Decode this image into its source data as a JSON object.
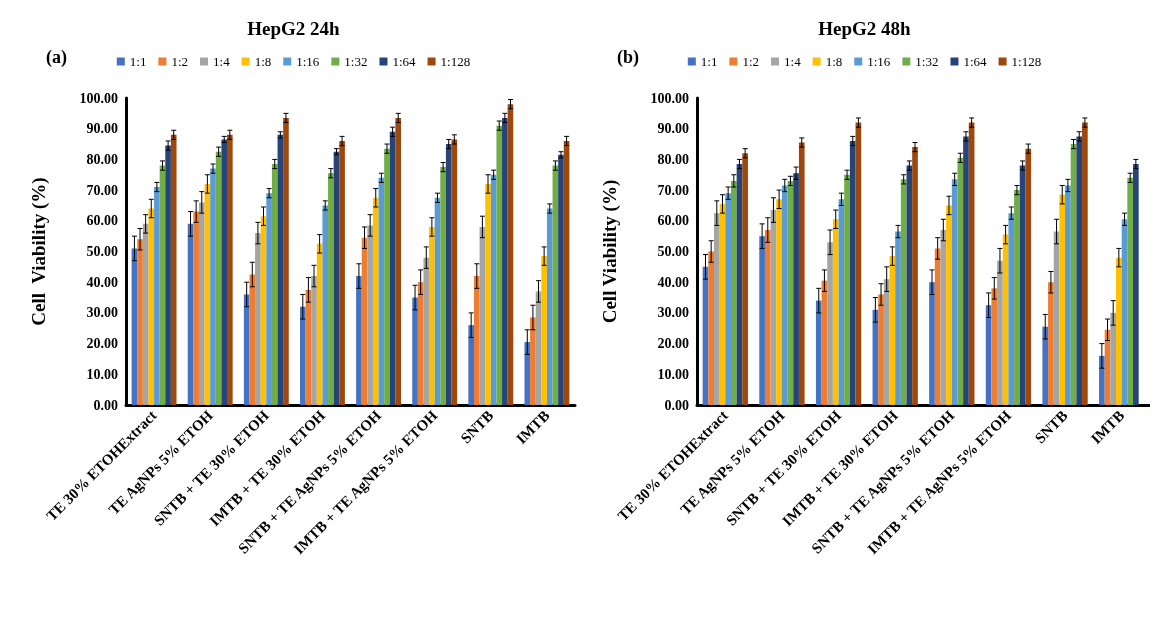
{
  "chart_data": [
    {
      "type": "bar",
      "title": "HepG2 24h",
      "annotations": [
        "(a)"
      ],
      "ylabel": "Cell  Viability (%)",
      "categories": [
        "TE 30% ETOHExtract",
        "TE AgNPs 5% ETOH",
        "SNTB + TE 30% ETOH",
        "IMTB + TE 30% ETOH",
        "SNTB + TE AgNPs 5% ETOH",
        "IMTB + TE AgNPs 5% ETOH",
        "SNTB",
        "IMTB"
      ],
      "ylim": [
        0,
        100
      ],
      "yticks": [
        {
          "value": 0,
          "label": "0.00"
        },
        {
          "value": 10,
          "label": "10.00"
        },
        {
          "value": 20,
          "label": "20.00"
        },
        {
          "value": 30,
          "label": "30.00"
        },
        {
          "value": 40,
          "label": "40.00"
        },
        {
          "value": 50,
          "label": "50.00"
        },
        {
          "value": 60,
          "label": "60.00"
        },
        {
          "value": 70,
          "label": "70.00"
        },
        {
          "value": 80,
          "label": "80.00"
        },
        {
          "value": 90,
          "label": "90.00"
        },
        {
          "value": 100,
          "label": "100.00"
        }
      ],
      "grid": false,
      "legend": "top",
      "series": [
        {
          "name": "1:1",
          "color": "#4472c4",
          "values": [
            51,
            59,
            36,
            32,
            42,
            35,
            26,
            20.5
          ],
          "errors": [
            4,
            4,
            4,
            4,
            4,
            4,
            4,
            4
          ]
        },
        {
          "name": "1:2",
          "color": "#ed7d31",
          "values": [
            54,
            63,
            42.5,
            37.5,
            54.5,
            40,
            42,
            28.5
          ],
          "errors": [
            3.5,
            3.5,
            4,
            4,
            3.5,
            4,
            4,
            4
          ]
        },
        {
          "name": "1:4",
          "color": "#a5a5a5",
          "values": [
            59,
            66,
            56,
            42,
            58.5,
            48,
            58,
            37
          ],
          "errors": [
            3,
            3.5,
            3.5,
            3.5,
            3.5,
            3.5,
            3.5,
            3.5
          ]
        },
        {
          "name": "1:8",
          "color": "#ffc000",
          "values": [
            64,
            72,
            61.5,
            52.5,
            67.5,
            58,
            72,
            48.5
          ],
          "errors": [
            3,
            3,
            3,
            3,
            3,
            3,
            3,
            3
          ]
        },
        {
          "name": "1:16",
          "color": "#5b9bd5",
          "values": [
            71,
            77,
            69,
            65,
            74,
            67.5,
            75,
            64
          ],
          "errors": [
            1.5,
            1.5,
            1.5,
            1.5,
            1.5,
            1.5,
            1.5,
            1.5
          ]
        },
        {
          "name": "1:32",
          "color": "#70ad47",
          "values": [
            78,
            82.5,
            78.5,
            75.5,
            83.5,
            77.5,
            91,
            78
          ],
          "errors": [
            1.5,
            1.5,
            1.5,
            1.5,
            1.5,
            1.5,
            1.5,
            1.5
          ]
        },
        {
          "name": "1:64",
          "color": "#264478",
          "values": [
            84.5,
            86.5,
            88,
            82.5,
            89,
            85,
            93.5,
            81.5
          ],
          "errors": [
            1.5,
            1,
            1,
            1,
            1.5,
            1.5,
            1.5,
            1
          ]
        },
        {
          "name": "1:128",
          "color": "#9e480e",
          "values": [
            88,
            88,
            93.5,
            86,
            93.5,
            86.5,
            98,
            86
          ],
          "errors": [
            1.5,
            1.5,
            1.5,
            1.5,
            1.5,
            1.5,
            1.5,
            1.5
          ]
        }
      ]
    },
    {
      "type": "bar",
      "title": "HepG2 48h",
      "annotations": [
        "(b)"
      ],
      "ylabel": "Cell Viability (%)",
      "categories": [
        "TE 30% ETOHExtract",
        "TE AgNPs 5% ETOH",
        "SNTB + TE 30% ETOH",
        "IMTB + TE 30% ETOH",
        "SNTB + TE AgNPs 5% ETOH",
        "IMTB + TE AgNPs 5% ETOH",
        "SNTB",
        "IMTB"
      ],
      "ylim": [
        0,
        100
      ],
      "yticks": [
        {
          "value": 0,
          "label": "0.00"
        },
        {
          "value": 10,
          "label": "10.00"
        },
        {
          "value": 20,
          "label": "20.00"
        },
        {
          "value": 30,
          "label": "30.00"
        },
        {
          "value": 40,
          "label": "40.00"
        },
        {
          "value": 50,
          "label": "50.00"
        },
        {
          "value": 60,
          "label": "60.00"
        },
        {
          "value": 70,
          "label": "70.00"
        },
        {
          "value": 80,
          "label": "80.00"
        },
        {
          "value": 90,
          "label": "90.00"
        },
        {
          "value": 100,
          "label": "100.00"
        }
      ],
      "grid": false,
      "legend": "top",
      "series": [
        {
          "name": "1:1",
          "color": "#4472c4",
          "values": [
            45,
            55,
            34,
            31,
            40,
            32.5,
            25.5,
            16
          ],
          "errors": [
            4,
            4,
            4,
            4,
            4,
            4,
            4,
            4
          ]
        },
        {
          "name": "1:2",
          "color": "#ed7d31",
          "values": [
            50,
            57,
            40.5,
            36,
            51,
            38,
            40,
            24.5
          ],
          "errors": [
            3.5,
            4,
            3.5,
            3.5,
            3.5,
            3.5,
            3.5,
            3.5
          ]
        },
        {
          "name": "1:4",
          "color": "#a5a5a5",
          "values": [
            62.5,
            63.5,
            53,
            41,
            57,
            47,
            56.5,
            30
          ],
          "errors": [
            4,
            4,
            4,
            4,
            3.5,
            4,
            4,
            4
          ]
        },
        {
          "name": "1:8",
          "color": "#ffc000",
          "values": [
            65.5,
            67,
            60.5,
            48.5,
            65,
            55.5,
            68.5,
            48
          ],
          "errors": [
            3,
            3,
            3,
            3,
            3,
            3,
            3,
            3
          ]
        },
        {
          "name": "1:16",
          "color": "#5b9bd5",
          "values": [
            69,
            71.5,
            67,
            56.5,
            73.5,
            62.5,
            71.5,
            60.5
          ],
          "errors": [
            2,
            2,
            2,
            2,
            2,
            2,
            2,
            2
          ]
        },
        {
          "name": "1:32",
          "color": "#70ad47",
          "values": [
            73,
            73,
            75,
            73.5,
            80.5,
            70,
            85,
            74
          ],
          "errors": [
            2,
            1.5,
            1.5,
            1.5,
            1.5,
            1.5,
            1.5,
            1.5
          ]
        },
        {
          "name": "1:64",
          "color": "#264478",
          "values": [
            78.5,
            75.5,
            86,
            78,
            87.5,
            78,
            87.5,
            78.5
          ],
          "errors": [
            1.5,
            2,
            1.5,
            1.5,
            1.5,
            1.5,
            1.5,
            1.5
          ]
        },
        {
          "name": "1:128",
          "color": "#9e480e",
          "values": [
            82,
            85.5,
            92,
            84,
            92,
            83.5,
            92,
            null
          ],
          "errors": [
            1.5,
            1.5,
            1.5,
            1.5,
            1.5,
            1.5,
            1.5,
            null
          ]
        }
      ]
    }
  ]
}
